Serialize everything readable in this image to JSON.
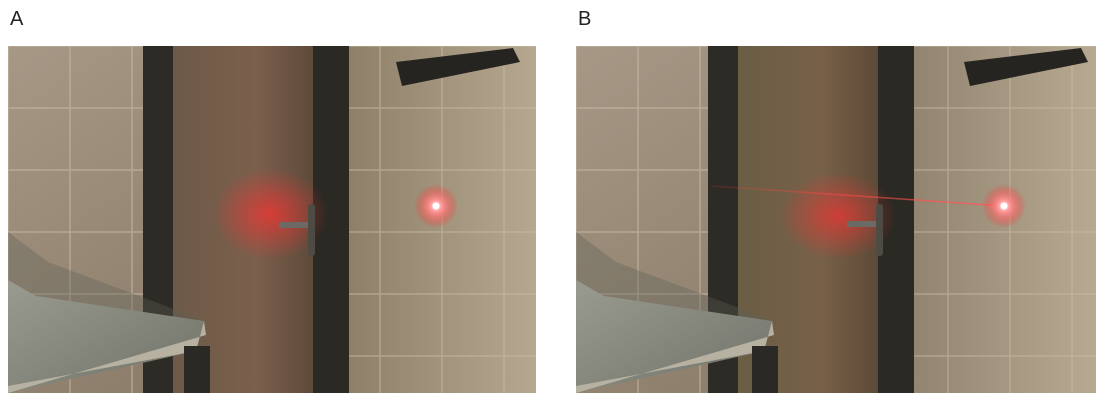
{
  "panels": [
    {
      "label": "A",
      "beam_visible": false
    },
    {
      "label": "B",
      "beam_visible": true
    }
  ],
  "colors": {
    "wall_tile": "#a6967e",
    "tile_grout": "#c9bca6",
    "door_frame": "#2d2a24",
    "door_panel": "#6f5d4a",
    "counter_top": "#8a8c80",
    "counter_edge": "#b9b3a3",
    "laser_red": "#ff2a2a",
    "laser_core": "#ffffff"
  }
}
